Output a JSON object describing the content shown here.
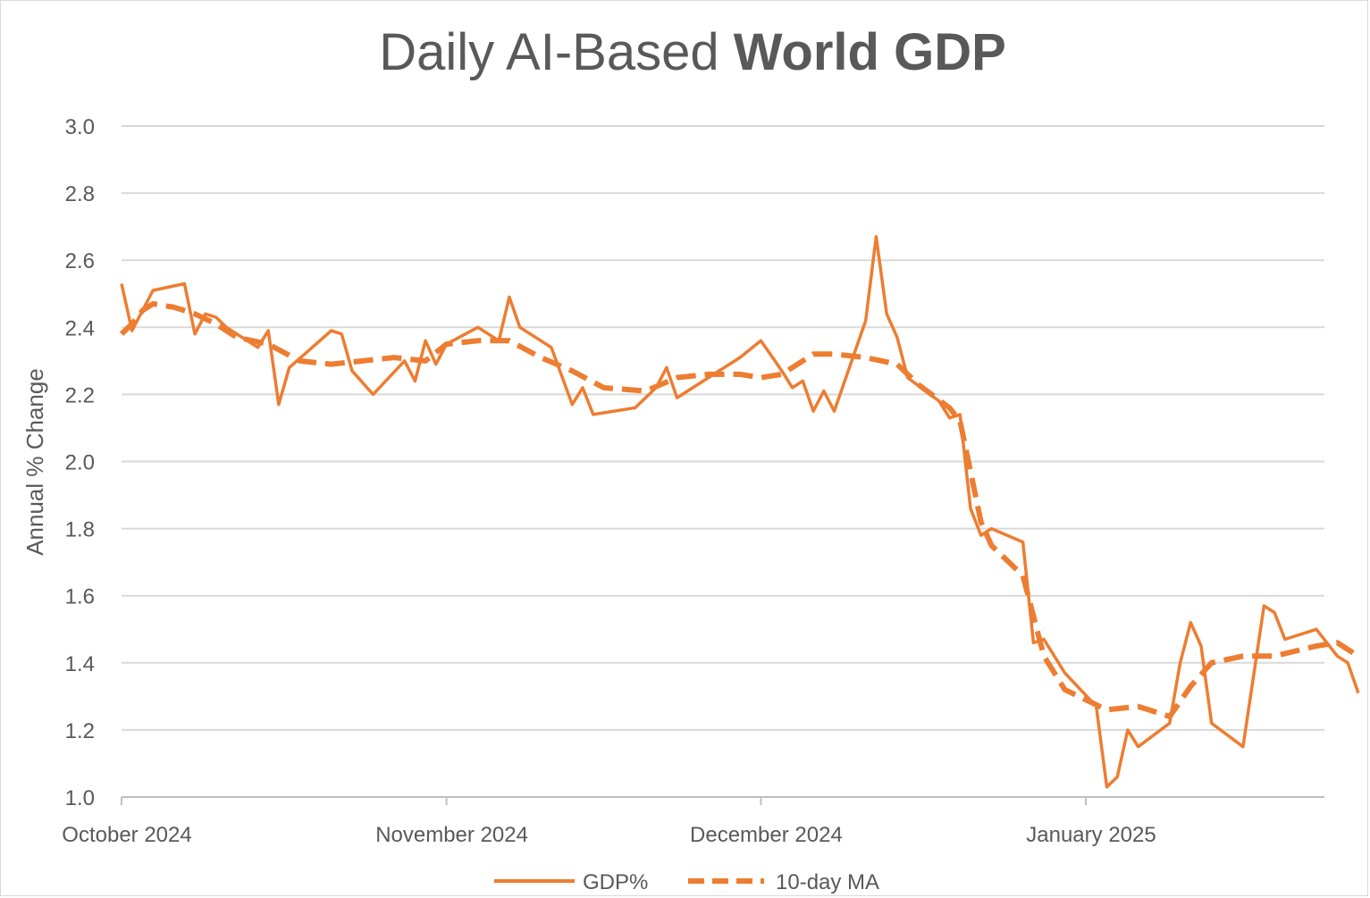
{
  "chart_data": {
    "type": "line",
    "title": {
      "light": "Daily AI-Based ",
      "bold": "World GDP"
    },
    "ylabel": "Annual % Change",
    "xlabel": "",
    "ylim": [
      1.0,
      3.0
    ],
    "yticks": [
      "1.0",
      "1.2",
      "1.4",
      "1.6",
      "1.8",
      "2.0",
      "2.2",
      "2.4",
      "2.6",
      "2.8",
      "3.0"
    ],
    "xlim": [
      "2024-10-01",
      "2025-01-23"
    ],
    "xticks": [
      {
        "date": "2024-10-01",
        "label": "October 2024"
      },
      {
        "date": "2024-11-01",
        "label": "November 2024"
      },
      {
        "date": "2024-12-01",
        "label": "December 2024"
      },
      {
        "date": "2025-01-01",
        "label": "January 2025"
      }
    ],
    "grid": true,
    "legend_position": "bottom",
    "series": [
      {
        "name": "GDP%",
        "color": "#ED7D31",
        "style": "solid",
        "points": [
          [
            "2024-10-01",
            2.53
          ],
          [
            "2024-10-02",
            2.39
          ],
          [
            "2024-10-04",
            2.51
          ],
          [
            "2024-10-07",
            2.53
          ],
          [
            "2024-10-08",
            2.38
          ],
          [
            "2024-10-09",
            2.44
          ],
          [
            "2024-10-10",
            2.43
          ],
          [
            "2024-10-11",
            2.4
          ],
          [
            "2024-10-14",
            2.34
          ],
          [
            "2024-10-15",
            2.39
          ],
          [
            "2024-10-16",
            2.17
          ],
          [
            "2024-10-17",
            2.28
          ],
          [
            "2024-10-21",
            2.39
          ],
          [
            "2024-10-22",
            2.38
          ],
          [
            "2024-10-23",
            2.27
          ],
          [
            "2024-10-25",
            2.2
          ],
          [
            "2024-10-28",
            2.3
          ],
          [
            "2024-10-29",
            2.24
          ],
          [
            "2024-10-30",
            2.36
          ],
          [
            "2024-10-31",
            2.29
          ],
          [
            "2024-11-01",
            2.35
          ],
          [
            "2024-11-04",
            2.4
          ],
          [
            "2024-11-06",
            2.36
          ],
          [
            "2024-11-07",
            2.49
          ],
          [
            "2024-11-08",
            2.4
          ],
          [
            "2024-11-11",
            2.34
          ],
          [
            "2024-11-13",
            2.17
          ],
          [
            "2024-11-14",
            2.22
          ],
          [
            "2024-11-15",
            2.14
          ],
          [
            "2024-11-19",
            2.16
          ],
          [
            "2024-11-21",
            2.22
          ],
          [
            "2024-11-22",
            2.28
          ],
          [
            "2024-11-23",
            2.19
          ],
          [
            "2024-11-27",
            2.27
          ],
          [
            "2024-11-29",
            2.31
          ],
          [
            "2024-12-01",
            2.36
          ],
          [
            "2024-12-03",
            2.27
          ],
          [
            "2024-12-04",
            2.22
          ],
          [
            "2024-12-05",
            2.24
          ],
          [
            "2024-12-06",
            2.15
          ],
          [
            "2024-12-07",
            2.21
          ],
          [
            "2024-12-08",
            2.15
          ],
          [
            "2024-12-11",
            2.42
          ],
          [
            "2024-12-12",
            2.67
          ],
          [
            "2024-12-13",
            2.44
          ],
          [
            "2024-12-14",
            2.37
          ],
          [
            "2024-12-15",
            2.25
          ],
          [
            "2024-12-18",
            2.18
          ],
          [
            "2024-12-19",
            2.13
          ],
          [
            "2024-12-20",
            2.14
          ],
          [
            "2024-12-21",
            1.86
          ],
          [
            "2024-12-22",
            1.78
          ],
          [
            "2024-12-23",
            1.8
          ],
          [
            "2024-12-26",
            1.76
          ],
          [
            "2024-12-27",
            1.46
          ],
          [
            "2024-12-28",
            1.47
          ],
          [
            "2024-12-30",
            1.37
          ],
          [
            "2025-01-02",
            1.27
          ],
          [
            "2025-01-03",
            1.03
          ],
          [
            "2025-01-04",
            1.06
          ],
          [
            "2025-01-05",
            1.2
          ],
          [
            "2025-01-06",
            1.15
          ],
          [
            "2025-01-09",
            1.22
          ],
          [
            "2025-01-10",
            1.4
          ],
          [
            "2025-01-11",
            1.52
          ],
          [
            "2025-01-12",
            1.45
          ],
          [
            "2025-01-13",
            1.22
          ],
          [
            "2025-01-16",
            1.15
          ],
          [
            "2025-01-18",
            1.57
          ],
          [
            "2025-01-19",
            1.55
          ],
          [
            "2025-01-20",
            1.47
          ],
          [
            "2025-01-23",
            1.5
          ],
          [
            "2025-01-25",
            1.42
          ],
          [
            "2025-01-26",
            1.4
          ],
          [
            "2025-01-27",
            1.31
          ]
        ]
      },
      {
        "name": "10-day MA",
        "color": "#ED7D31",
        "style": "dashed",
        "points": [
          [
            "2024-10-01",
            2.38
          ],
          [
            "2024-10-02",
            2.41
          ],
          [
            "2024-10-03",
            2.45
          ],
          [
            "2024-10-04",
            2.47
          ],
          [
            "2024-10-06",
            2.46
          ],
          [
            "2024-10-08",
            2.44
          ],
          [
            "2024-10-10",
            2.41
          ],
          [
            "2024-10-12",
            2.37
          ],
          [
            "2024-10-15",
            2.35
          ],
          [
            "2024-10-18",
            2.3
          ],
          [
            "2024-10-21",
            2.29
          ],
          [
            "2024-10-24",
            2.3
          ],
          [
            "2024-10-27",
            2.31
          ],
          [
            "2024-10-30",
            2.3
          ],
          [
            "2024-11-01",
            2.35
          ],
          [
            "2024-11-04",
            2.36
          ],
          [
            "2024-11-07",
            2.36
          ],
          [
            "2024-11-10",
            2.31
          ],
          [
            "2024-11-13",
            2.27
          ],
          [
            "2024-11-16",
            2.22
          ],
          [
            "2024-11-20",
            2.21
          ],
          [
            "2024-11-23",
            2.25
          ],
          [
            "2024-11-26",
            2.26
          ],
          [
            "2024-11-29",
            2.26
          ],
          [
            "2024-12-01",
            2.25
          ],
          [
            "2024-12-03",
            2.26
          ],
          [
            "2024-12-06",
            2.32
          ],
          [
            "2024-12-08",
            2.32
          ],
          [
            "2024-12-11",
            2.31
          ],
          [
            "2024-12-14",
            2.29
          ],
          [
            "2024-12-16",
            2.23
          ],
          [
            "2024-12-19",
            2.16
          ],
          [
            "2024-12-20",
            2.12
          ],
          [
            "2024-12-22",
            1.82
          ],
          [
            "2024-12-23",
            1.75
          ],
          [
            "2024-12-26",
            1.66
          ],
          [
            "2024-12-28",
            1.42
          ],
          [
            "2024-12-30",
            1.32
          ],
          [
            "2025-01-03",
            1.26
          ],
          [
            "2025-01-06",
            1.27
          ],
          [
            "2025-01-09",
            1.24
          ],
          [
            "2025-01-11",
            1.33
          ],
          [
            "2025-01-13",
            1.4
          ],
          [
            "2025-01-16",
            1.42
          ],
          [
            "2025-01-19",
            1.42
          ],
          [
            "2025-01-23",
            1.45
          ],
          [
            "2025-01-25",
            1.46
          ],
          [
            "2025-01-27",
            1.42
          ]
        ]
      }
    ]
  }
}
